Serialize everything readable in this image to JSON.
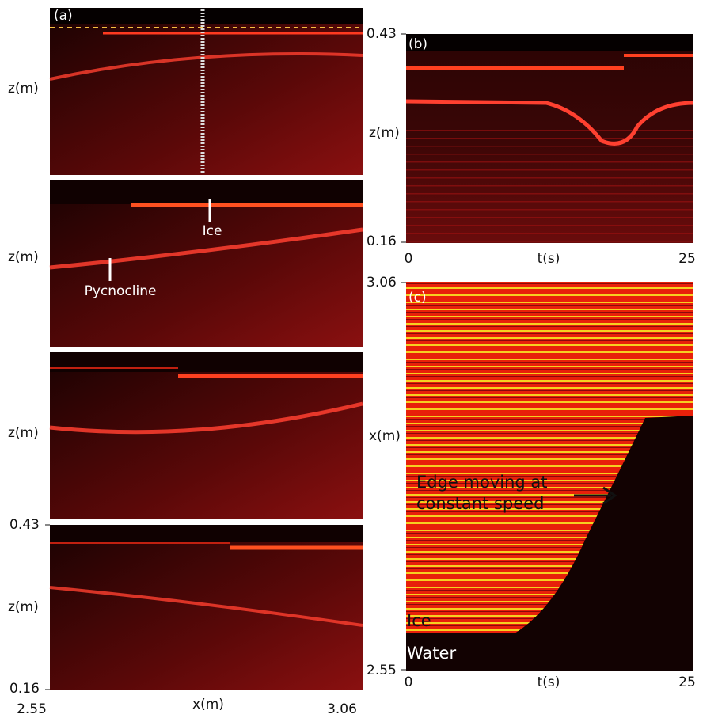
{
  "figure": {
    "panels": [
      {
        "label": "(a)"
      },
      {
        "label": "(b)"
      },
      {
        "label": "(c)"
      }
    ],
    "left": {
      "y_labels": [
        "z(m)",
        "z(m)",
        "z(m)",
        "z(m)"
      ],
      "y_ticks": [
        "0.43",
        "0.16"
      ],
      "x_label": "x(m)",
      "x_ticks": [
        "2.55",
        "3.06"
      ]
    },
    "b": {
      "y_label": "z(m)",
      "y_ticks": [
        "0.43",
        "0.16"
      ],
      "x_label": "t(s)",
      "x_ticks": [
        "0",
        "25"
      ]
    },
    "c": {
      "y_label": "x(m)",
      "y_ticks": [
        "3.06",
        "2.55"
      ],
      "x_label": "t(s)",
      "x_ticks": [
        "0",
        "25"
      ]
    },
    "annotations": {
      "ice": "Ice",
      "pycnocline": "Pycnocline",
      "edge": [
        "Edge moving at",
        "constant speed"
      ],
      "ice_c": "Ice",
      "water_c": "Water"
    }
  }
}
